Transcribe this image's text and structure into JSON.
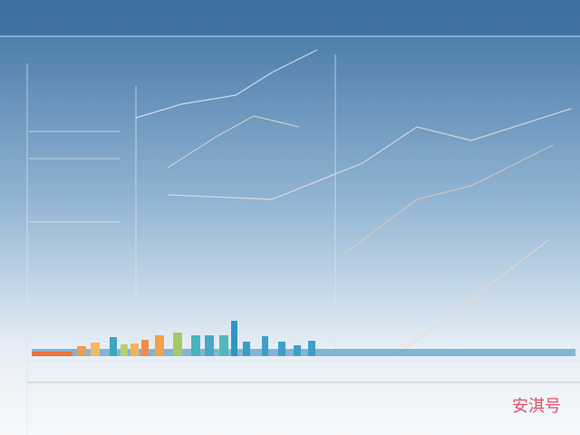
{
  "watermark": "安淇号"
}
